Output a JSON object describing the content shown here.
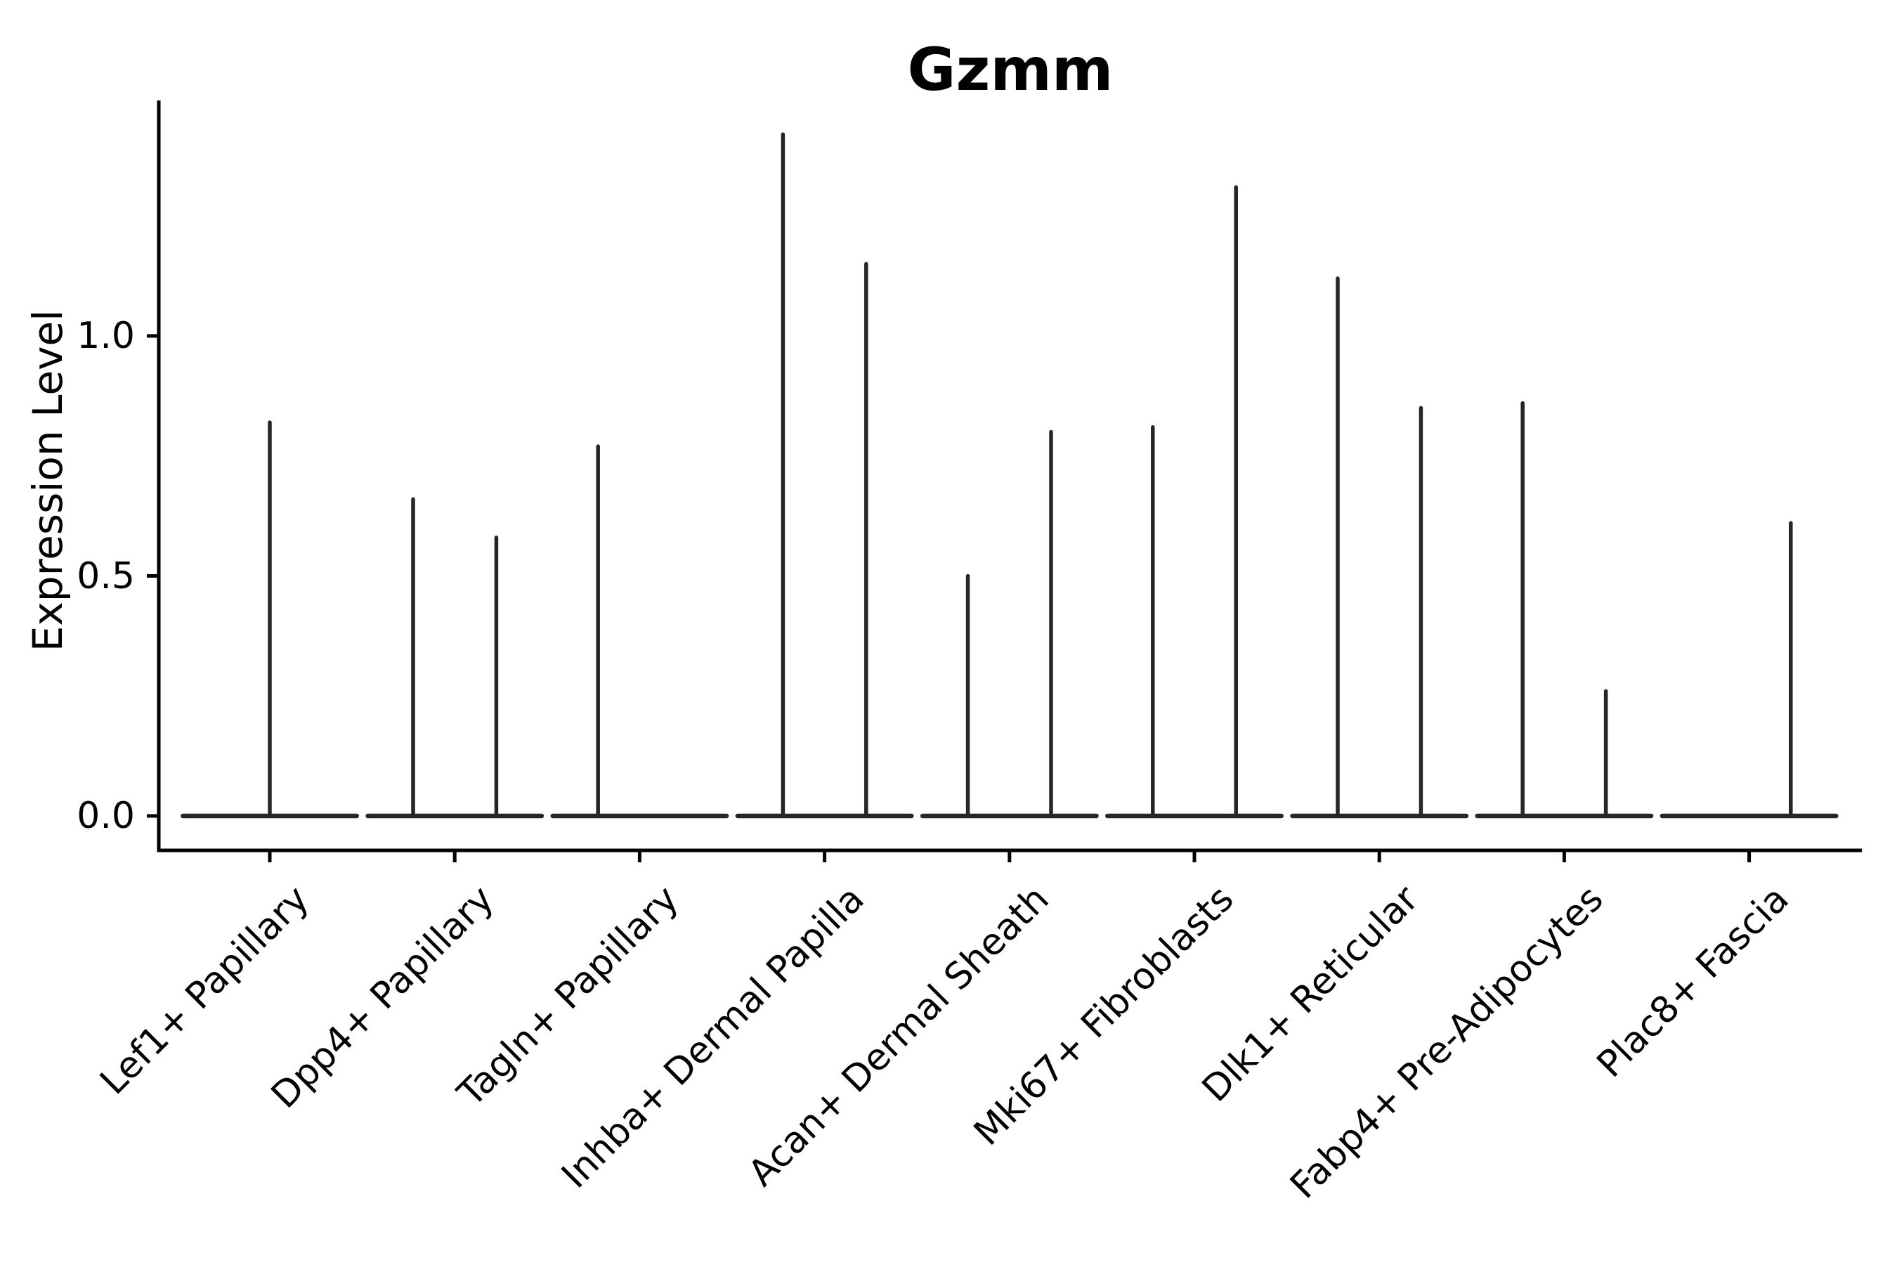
{
  "colors": {
    "violin_line": "#262626",
    "axis": "#000000",
    "background": "#ffffff"
  },
  "chart_data": {
    "type": "violin",
    "title": "Gzmm",
    "xlabel": "",
    "ylabel": "Expression Level",
    "ylim": [
      -0.07,
      1.49
    ],
    "grid": false,
    "legend": "none",
    "yticks": [
      {
        "label": "0.0",
        "value": 0.0
      },
      {
        "label": "0.5",
        "value": 0.5
      },
      {
        "label": "1.0",
        "value": 1.0
      }
    ],
    "categories": [
      "Lef1+ Papillary",
      "Dpp4+ Papillary",
      "Tagln+ Papillary",
      "Inhba+ Dermal Papilla",
      "Acan+ Dermal Sheath",
      "Mki67+ Fibroblasts",
      "Dlk1+ Reticular",
      "Fabp4+ Pre-Adipocytes",
      "Plac8+ Fascia"
    ],
    "note": "Each category shows flat violin mass at expression 0 with thin spikes reaching the max expression; offset is in category-width units relative to the category tick.",
    "baseline_value": 0.0,
    "baseline_halfwidth_units": 0.47,
    "violins": [
      {
        "category": "Lef1+ Papillary",
        "spikes": [
          {
            "offset": 0.0,
            "max": 0.82
          }
        ]
      },
      {
        "category": "Dpp4+ Papillary",
        "spikes": [
          {
            "offset": -0.225,
            "max": 0.66
          },
          {
            "offset": 0.225,
            "max": 0.58
          }
        ]
      },
      {
        "category": "Tagln+ Papillary",
        "spikes": [
          {
            "offset": -0.225,
            "max": 0.77
          }
        ]
      },
      {
        "category": "Inhba+ Dermal Papilla",
        "spikes": [
          {
            "offset": -0.225,
            "max": 1.42
          },
          {
            "offset": 0.225,
            "max": 1.15
          }
        ]
      },
      {
        "category": "Acan+ Dermal Sheath",
        "spikes": [
          {
            "offset": -0.225,
            "max": 0.5
          },
          {
            "offset": 0.225,
            "max": 0.8
          }
        ]
      },
      {
        "category": "Mki67+ Fibroblasts",
        "spikes": [
          {
            "offset": -0.225,
            "max": 0.81
          },
          {
            "offset": 0.225,
            "max": 1.31
          }
        ]
      },
      {
        "category": "Dlk1+ Reticular",
        "spikes": [
          {
            "offset": -0.225,
            "max": 1.12
          },
          {
            "offset": 0.225,
            "max": 0.85
          }
        ]
      },
      {
        "category": "Fabp4+ Pre-Adipocytes",
        "spikes": [
          {
            "offset": -0.225,
            "max": 0.86
          },
          {
            "offset": 0.225,
            "max": 0.26
          }
        ]
      },
      {
        "category": "Plac8+ Fascia",
        "spikes": [
          {
            "offset": 0.225,
            "max": 0.61
          }
        ]
      }
    ]
  }
}
